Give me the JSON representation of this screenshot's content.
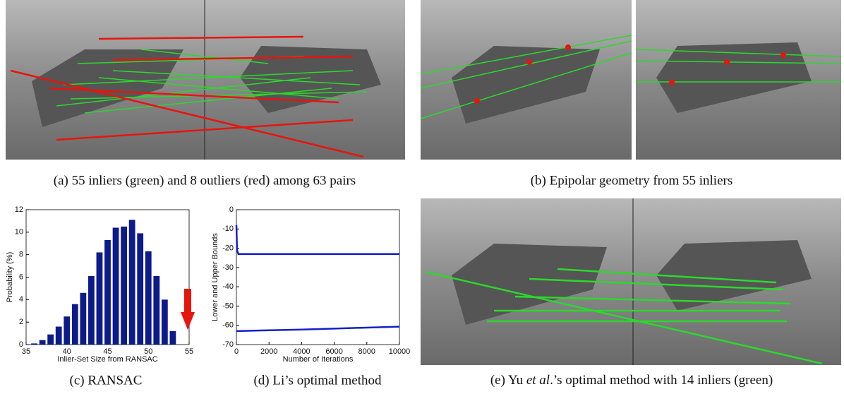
{
  "captions": {
    "a": "(a) 55 inliers (green) and 8 outliers (red) among 63 pairs",
    "b": "(b) Epipolar geometry from 55 inliers",
    "c": "(c) RANSAC",
    "d": "(d) Li’s optimal method",
    "e": {
      "before": "(e) Yu ",
      "italic": "et al",
      "after": ".’s optimal method with 14 inliers (green)"
    }
  },
  "chart_data": [
    {
      "type": "bar",
      "y_label": "Probability (%)",
      "x_label": "Inlier-Set Size from RANSAC",
      "x": [
        36,
        37,
        38,
        39,
        40,
        41,
        42,
        43,
        44,
        45,
        46,
        47,
        48,
        49,
        50,
        51,
        52,
        53
      ],
      "values": [
        0.1,
        0.4,
        0.9,
        1.6,
        2.5,
        3.6,
        4.6,
        6.1,
        8.2,
        9.3,
        10.4,
        10.5,
        11.1,
        9.9,
        8.3,
        6.1,
        4.0,
        1.2
      ],
      "color": "#0c1a8a",
      "annotation_color": "#e8140e",
      "xlim": [
        35,
        55
      ],
      "xticks": [
        35,
        40,
        45,
        50,
        55
      ],
      "ylim": [
        0,
        12
      ],
      "yticks": [
        0,
        2,
        4,
        6,
        8,
        10,
        12
      ]
    },
    {
      "type": "line",
      "y_label": "Lower and Upper Bounds",
      "x_label": "Number of Iterations",
      "series": [
        {
          "color": "#1420c8",
          "x": [
            0,
            40,
            120,
            10000
          ],
          "values": [
            -8,
            -21,
            -23,
            -23
          ]
        },
        {
          "color": "#1420c8",
          "x": [
            0,
            2000,
            4000,
            6000,
            8000,
            10000
          ],
          "values": [
            -63,
            -62.6,
            -62.2,
            -61.7,
            -61.2,
            -60.7
          ]
        }
      ],
      "xlim": [
        0,
        10000
      ],
      "xticks": [
        0,
        2000,
        4000,
        6000,
        8000,
        10000
      ],
      "ylim": [
        -70,
        0
      ],
      "yticks": [
        -70,
        -60,
        -50,
        -40,
        -30,
        -20,
        -10,
        0
      ]
    }
  ]
}
